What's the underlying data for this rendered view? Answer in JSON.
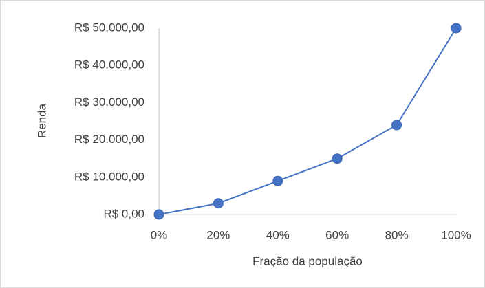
{
  "chart_data": {
    "type": "line",
    "x_label": "Fração da população",
    "y_label": "Renda",
    "x": [
      0,
      20,
      40,
      60,
      80,
      100
    ],
    "values": [
      0,
      3000,
      9000,
      15000,
      24000,
      50000
    ],
    "color": "#4472c4",
    "xlim": [
      0,
      100
    ],
    "xticks": [
      {
        "value": 0,
        "label": "0%"
      },
      {
        "value": 20,
        "label": "20%"
      },
      {
        "value": 40,
        "label": "40%"
      },
      {
        "value": 60,
        "label": "60%"
      },
      {
        "value": 80,
        "label": "80%"
      },
      {
        "value": 100,
        "label": "100%"
      }
    ],
    "ylim": [
      0,
      50000
    ],
    "yticks": [
      {
        "value": 0,
        "label": "R$ 0,00"
      },
      {
        "value": 10000,
        "label": "R$ 10.000,00"
      },
      {
        "value": 20000,
        "label": "R$ 20.000,00"
      },
      {
        "value": 30000,
        "label": "R$ 30.000,00"
      },
      {
        "value": 40000,
        "label": "R$ 40.000,00"
      },
      {
        "value": 50000,
        "label": "R$ 50.000,00"
      }
    ],
    "grid": false
  }
}
